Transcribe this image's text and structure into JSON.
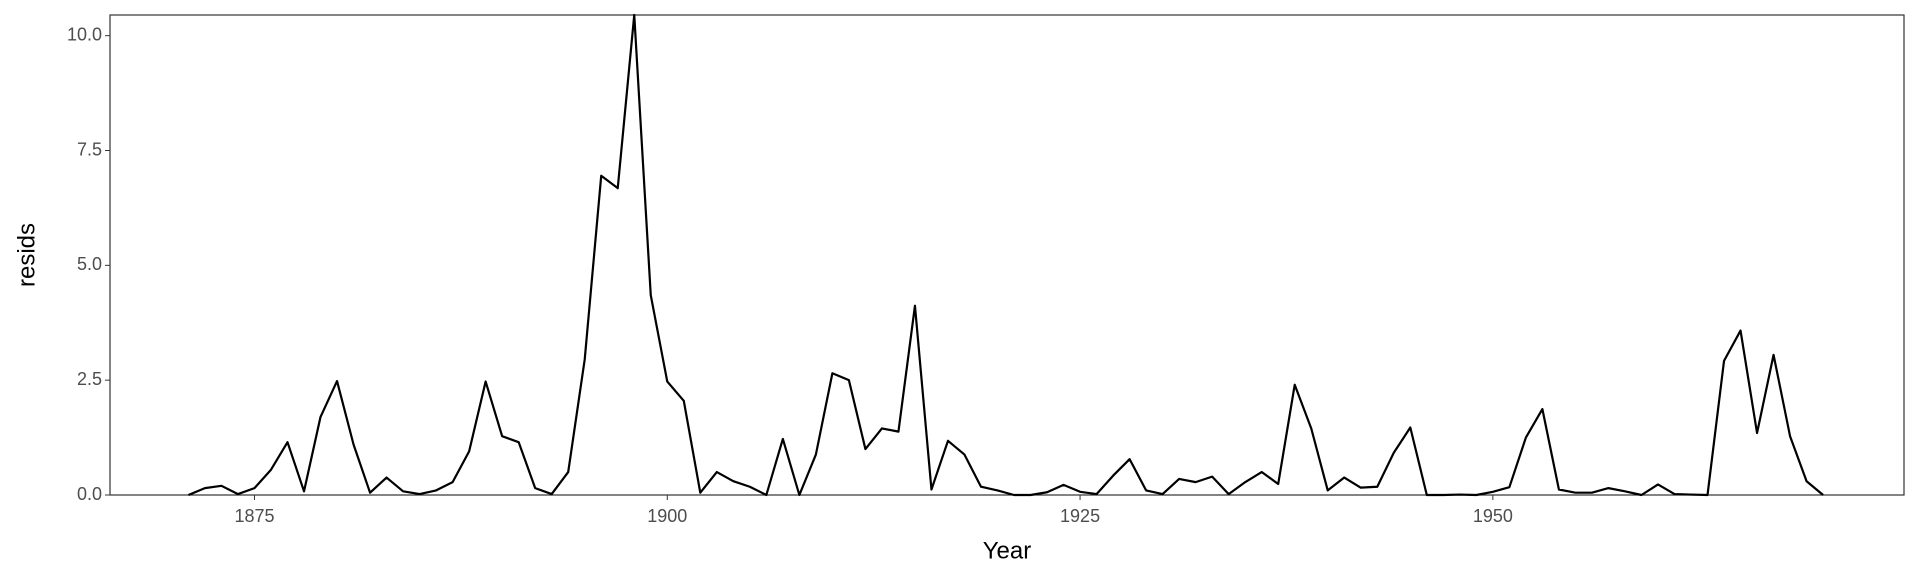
{
  "chart_data": {
    "type": "line",
    "x_label": "Year",
    "y_label": "resids",
    "x": [
      1871,
      1872,
      1873,
      1874,
      1875,
      1876,
      1877,
      1878,
      1879,
      1880,
      1881,
      1882,
      1883,
      1884,
      1885,
      1886,
      1887,
      1888,
      1889,
      1890,
      1891,
      1892,
      1893,
      1894,
      1895,
      1896,
      1897,
      1898,
      1899,
      1900,
      1901,
      1902,
      1903,
      1904,
      1905,
      1906,
      1907,
      1908,
      1909,
      1910,
      1911,
      1912,
      1913,
      1914,
      1915,
      1916,
      1917,
      1918,
      1919,
      1920,
      1921,
      1922,
      1923,
      1924,
      1925,
      1926,
      1927,
      1928,
      1929,
      1930,
      1931,
      1932,
      1933,
      1934,
      1935,
      1936,
      1937,
      1938,
      1939,
      1940,
      1941,
      1942,
      1943,
      1944,
      1945,
      1946,
      1947,
      1948,
      1949,
      1950,
      1951,
      1952,
      1953,
      1954,
      1955,
      1956,
      1957,
      1958,
      1959,
      1960,
      1961,
      1962,
      1963,
      1964,
      1965,
      1966,
      1967,
      1968,
      1969,
      1970
    ],
    "values": [
      0,
      0.15,
      0.2,
      0.02,
      0.15,
      0.55,
      1.15,
      0.08,
      1.7,
      2.48,
      1.1,
      0.05,
      0.38,
      0.08,
      0.02,
      0.1,
      0.28,
      0.95,
      2.47,
      1.28,
      1.15,
      0.15,
      0.02,
      0.5,
      2.95,
      6.95,
      6.68,
      10.45,
      4.35,
      2.47,
      2.05,
      0.05,
      0.5,
      0.3,
      0.18,
      0,
      1.22,
      0,
      0.88,
      2.65,
      2.5,
      1,
      1.45,
      1.38,
      4.12,
      0.12,
      1.18,
      0.88,
      0.18,
      0.1,
      0,
      0,
      0.06,
      0.22,
      0.07,
      0.02,
      0.42,
      0.78,
      0.1,
      0.02,
      0.35,
      0.28,
      0.4,
      0.02,
      0.28,
      0.5,
      0.24,
      2.4,
      1.45,
      0.1,
      0.38,
      0.16,
      0.18,
      0.92,
      1.47,
      0,
      0,
      0.01,
      0,
      0.07,
      0.17,
      1.25,
      1.87,
      0.12,
      0.05,
      0.05,
      0.15,
      0.08,
      0,
      0.23,
      0.02,
      0.01,
      0,
      2.92,
      3.58,
      1.35,
      3.05,
      1.28,
      0.3,
      0
    ],
    "color": "#000000",
    "xlim": [
      1866.25,
      1974.9
    ],
    "xticks": [
      1875,
      1900,
      1925,
      1950
    ],
    "ylim": [
      0,
      10.45
    ],
    "yticks": [
      {
        "value": 0,
        "label": "0.0"
      },
      {
        "value": 2.5,
        "label": "2.5"
      },
      {
        "value": 5,
        "label": "5.0"
      },
      {
        "value": 7.5,
        "label": "7.5"
      },
      {
        "value": 10,
        "label": "10.0"
      }
    ],
    "grid": false
  }
}
